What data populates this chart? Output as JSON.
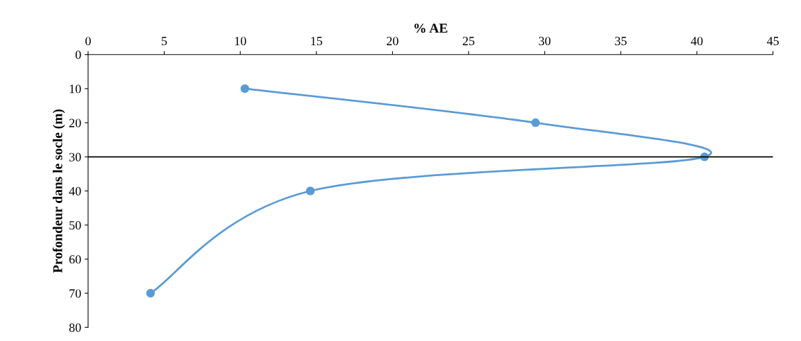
{
  "chart_data": {
    "type": "line",
    "xlabel": "% AE",
    "ylabel": "Profondeur dans le socle (m)",
    "series": [
      {
        "color": "#5b9bd5",
        "x": [
          10.3,
          29.4,
          40.5,
          14.6,
          4.1
        ],
        "values": [
          10,
          20,
          30,
          40,
          70
        ]
      }
    ],
    "xlim": [
      0,
      45
    ],
    "xticks": [
      0,
      5,
      10,
      15,
      20,
      25,
      30,
      35,
      40,
      45
    ],
    "ylim": [
      80,
      0
    ],
    "yticks": [
      0,
      10,
      20,
      30,
      40,
      50,
      60,
      70,
      80
    ],
    "ref_lines": [
      {
        "axis": "y",
        "value": 30,
        "color": "#000000"
      }
    ],
    "marker": "circle",
    "line_style": "solid",
    "grid": false,
    "legend": false
  }
}
